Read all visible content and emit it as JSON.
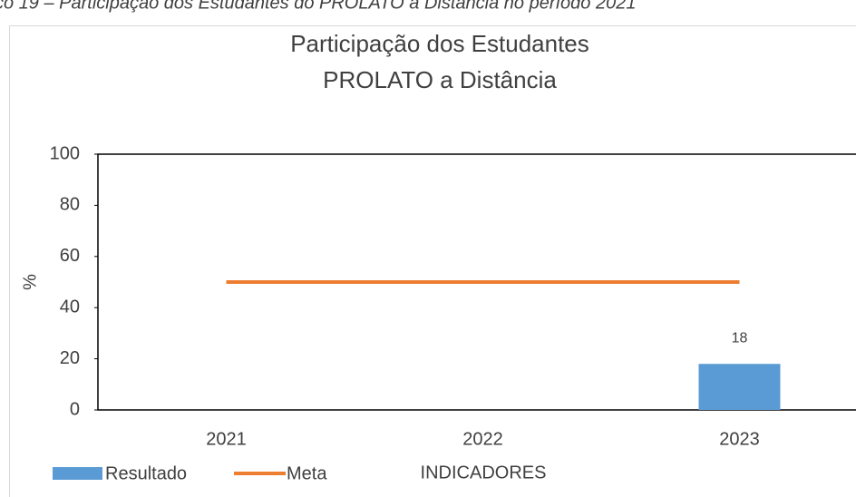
{
  "caption": "co 19 – Participação dos Estudantes do PROLATO a Distância no período 2021",
  "chart_data": {
    "type": "bar-line",
    "title": [
      "Participação dos Estudantes",
      "PROLATO a Distância"
    ],
    "categories": [
      "2021",
      "2022",
      "2023"
    ],
    "series": [
      {
        "name": "Resultado",
        "type": "bar",
        "color": "#5b9bd5",
        "values": [
          null,
          null,
          18
        ]
      },
      {
        "name": "Meta",
        "type": "line",
        "color": "#ed7d31",
        "values": [
          50,
          50,
          50
        ]
      }
    ],
    "y_label": "%",
    "x_label": "INDICADORES",
    "ylim": [
      0,
      100
    ],
    "yticks": [
      0,
      20,
      40,
      60,
      80,
      100
    ],
    "legend": "bottom-left"
  }
}
